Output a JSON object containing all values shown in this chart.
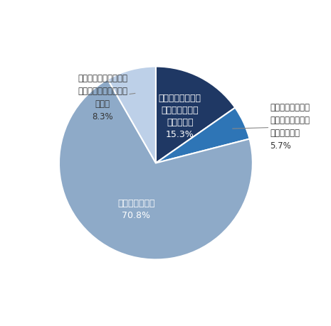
{
  "slices": [
    {
      "value": 15.3,
      "color": "#1F3864",
      "inside_label": "感染拡大前よりも\nお薦めしたいと\n思っている\n15.3%",
      "inside_color": "white"
    },
    {
      "value": 5.7,
      "color": "#2E75B6",
      "inside_label": null,
      "inside_color": null,
      "annot_text": "感染拡大前よりも\nお薦めしたくない\nと思っている\n5.7%",
      "annot_ha": "left"
    },
    {
      "value": 70.8,
      "color": "#8EAAC8",
      "inside_label": "特に変わらない\n70.8%",
      "inside_color": "white"
    },
    {
      "value": 8.3,
      "color": "#BDD0E8",
      "inside_label": null,
      "inside_color": null,
      "annot_text": "感染拡大前に該当の航\n空会社を利用したこと\nがない\n8.3%",
      "annot_ha": "center"
    }
  ],
  "startangle": 90,
  "counterclock": false,
  "background_color": "#FFFFFF",
  "text_color": "#333333",
  "fontsize_inside": 9,
  "fontsize_annot": 8.5,
  "figsize": [
    4.65,
    4.59
  ],
  "dpi": 100
}
